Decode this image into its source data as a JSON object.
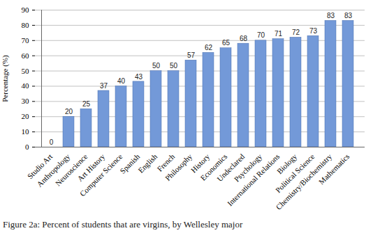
{
  "chart_data": {
    "type": "bar",
    "title": "Figure 2a: Percent of students that are virgins, by Wellesley major",
    "y_label": "Percentage (%)",
    "categories": [
      "Studio Art",
      "Anthropology",
      "Neuroscience",
      "Art History",
      "Computer Science",
      "Spanish",
      "English",
      "French",
      "Philosophy",
      "History",
      "Economics",
      "Undeclared",
      "Psychology",
      "International Relations",
      "Biology",
      "Political Science",
      "Chemistry/Biochemistry",
      "Mathematics"
    ],
    "values": [
      0,
      20,
      25,
      37,
      40,
      43,
      50,
      50,
      57,
      62,
      65,
      68,
      70,
      71,
      72,
      73,
      83,
      83
    ],
    "color": "#7399d8",
    "ylim": [
      0,
      90
    ],
    "yticks": [
      0,
      10,
      20,
      30,
      40,
      50,
      60,
      70,
      80,
      90
    ],
    "grid": true,
    "data_labels": true
  }
}
